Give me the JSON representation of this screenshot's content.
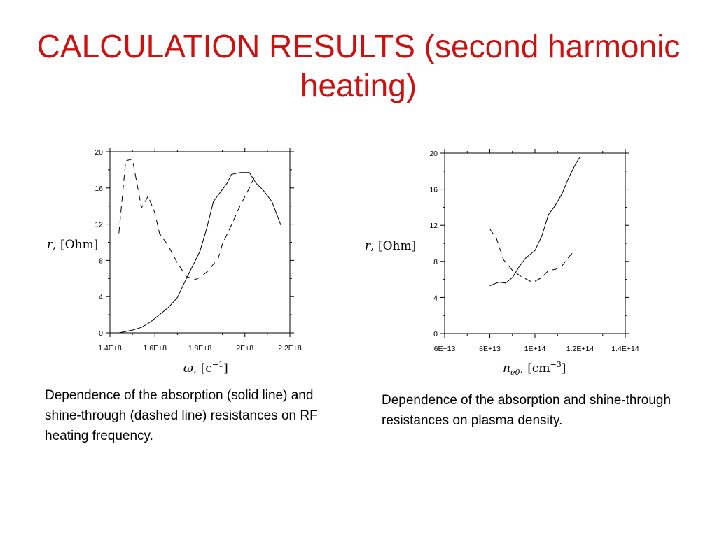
{
  "title": "CALCULATION RESULTS (second harmonic heating)",
  "chart_data": [
    {
      "type": "line",
      "xlabel": "ω, [c⁻¹]",
      "ylabel": "r, [Ohm]",
      "xlim": [
        140000000.0,
        220000000.0
      ],
      "ylim": [
        0,
        20
      ],
      "xticks": [
        "1.4E+8",
        "1.6E+8",
        "1.8E+8",
        "2E+8",
        "2.2E+8"
      ],
      "yticks": [
        "0",
        "4",
        "8",
        "12",
        "16",
        "20"
      ],
      "series": [
        {
          "style": "solid",
          "x": [
            144000000.0,
            150000000.0,
            154000000.0,
            158000000.0,
            162000000.0,
            166000000.0,
            170000000.0,
            174000000.0,
            178000000.0,
            180000000.0,
            183000000.0,
            186000000.0,
            189000000.0,
            192000000.0,
            194000000.0,
            198000000.0,
            202000000.0,
            205000000.0,
            208000000.0,
            212000000.0,
            216000000.0
          ],
          "y": [
            0,
            0.3,
            0.6,
            1.2,
            2.0,
            2.8,
            3.9,
            6.0,
            8.0,
            9.0,
            11.5,
            14.5,
            15.5,
            16.5,
            17.5,
            17.7,
            17.7,
            16.5,
            15.8,
            14.5,
            11.9
          ]
        },
        {
          "style": "dashed",
          "x": [
            144000000.0,
            147000000.0,
            150000000.0,
            154000000.0,
            157000000.0,
            160000000.0,
            162000000.0,
            166000000.0,
            170000000.0,
            174000000.0,
            178000000.0,
            180000000.0,
            184000000.0,
            186000000.0,
            188000000.0,
            190000000.0,
            194000000.0,
            198000000.0,
            202000000.0,
            205000000.0
          ],
          "y": [
            11.0,
            19.0,
            19.2,
            13.8,
            15.1,
            13.2,
            11.0,
            9.6,
            7.7,
            6.2,
            5.9,
            6.1,
            6.9,
            7.6,
            8.1,
            9.8,
            11.9,
            14.1,
            16.0,
            17.6
          ]
        }
      ]
    },
    {
      "type": "line",
      "xlabel": "n_e0, [cm⁻³]",
      "ylabel": "r, [Ohm]",
      "xlim": [
        60000000000000.0,
        140000000000000.0
      ],
      "ylim": [
        0,
        20
      ],
      "xticks": [
        "6E+13",
        "8E+13",
        "1E+14",
        "1.2E+14",
        "1.4E+14"
      ],
      "yticks": [
        "0",
        "4",
        "8",
        "12",
        "16",
        "20"
      ],
      "series": [
        {
          "style": "solid",
          "x": [
            80000000000000.0,
            84000000000000.0,
            87000000000000.0,
            90000000000000.0,
            93000000000000.0,
            96000000000000.0,
            100000000000000.0,
            103000000000000.0,
            106000000000000.0,
            109000000000000.0,
            112000000000000.0,
            115000000000000.0,
            118000000000000.0,
            120000000000000.0
          ],
          "y": [
            5.3,
            5.7,
            5.6,
            6.2,
            7.4,
            8.4,
            9.2,
            10.8,
            13.2,
            14.2,
            15.5,
            17.3,
            18.8,
            19.6
          ]
        },
        {
          "style": "dashed",
          "x": [
            80000000000000.0,
            83000000000000.0,
            86000000000000.0,
            90000000000000.0,
            94000000000000.0,
            98000000000000.0,
            100000000000000.0,
            103000000000000.0,
            106000000000000.0,
            109000000000000.0,
            112000000000000.0,
            115000000000000.0,
            118000000000000.0
          ],
          "y": [
            11.6,
            10.5,
            8.2,
            7.0,
            6.3,
            5.8,
            5.8,
            6.2,
            7.0,
            7.1,
            7.5,
            8.5,
            9.3
          ]
        }
      ]
    }
  ],
  "captions": {
    "left": "Dependence of the absorption (solid line) and shine-through (dashed line) resistances on RF heating frequency.",
    "right": "Dependence of the absorption and shine-through resistances on plasma density."
  }
}
